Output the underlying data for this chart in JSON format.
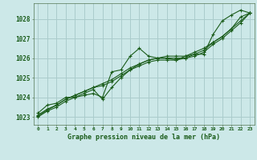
{
  "title": "Graphe pression niveau de la mer (hPa)",
  "bg_color": "#cce8e8",
  "grid_color": "#aacccc",
  "line_color": "#1a5c1a",
  "xlim": [
    -0.5,
    23.5
  ],
  "ylim": [
    1022.6,
    1028.8
  ],
  "yticks": [
    1023,
    1024,
    1025,
    1026,
    1027,
    1028
  ],
  "xticks": [
    0,
    1,
    2,
    3,
    4,
    5,
    6,
    7,
    8,
    9,
    10,
    11,
    12,
    13,
    14,
    15,
    16,
    17,
    18,
    19,
    20,
    21,
    22,
    23
  ],
  "series": [
    [
      1023.2,
      1023.6,
      1023.7,
      1024.0,
      1024.0,
      1024.1,
      1024.2,
      1024.0,
      1025.3,
      1025.4,
      1026.1,
      1026.5,
      1026.1,
      1026.0,
      1026.0,
      1025.9,
      1026.1,
      1026.2,
      1026.2,
      1027.2,
      1027.9,
      1028.2,
      1028.45,
      1028.3
    ],
    [
      1023.1,
      1023.4,
      1023.6,
      1023.9,
      1024.1,
      1024.3,
      1024.5,
      1024.7,
      1024.9,
      1025.2,
      1025.5,
      1025.7,
      1025.9,
      1026.0,
      1026.1,
      1026.1,
      1026.1,
      1026.3,
      1026.5,
      1026.8,
      1027.1,
      1027.5,
      1028.1,
      1028.3
    ],
    [
      1023.05,
      1023.35,
      1023.6,
      1023.9,
      1024.1,
      1024.3,
      1024.5,
      1024.6,
      1024.8,
      1025.1,
      1025.4,
      1025.7,
      1025.9,
      1026.0,
      1026.0,
      1026.0,
      1026.0,
      1026.2,
      1026.4,
      1026.8,
      1027.1,
      1027.5,
      1027.9,
      1028.3
    ],
    [
      1023.0,
      1023.3,
      1023.5,
      1023.8,
      1024.0,
      1024.2,
      1024.4,
      1023.9,
      1024.5,
      1025.0,
      1025.4,
      1025.6,
      1025.8,
      1025.9,
      1025.9,
      1025.9,
      1026.0,
      1026.1,
      1026.3,
      1026.7,
      1027.0,
      1027.4,
      1027.8,
      1028.3
    ]
  ]
}
